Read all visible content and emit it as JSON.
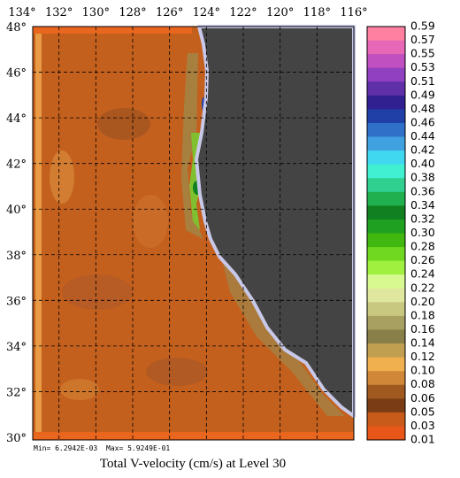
{
  "map": {
    "lon_labels": [
      "134°",
      "132°",
      "130°",
      "128°",
      "126°",
      "124°",
      "122°",
      "120°",
      "118°",
      "116°"
    ],
    "lat_labels": [
      "48°",
      "46°",
      "44°",
      "42°",
      "40°",
      "38°",
      "36°",
      "34°",
      "32°",
      "30°"
    ],
    "colorbar": {
      "labels": [
        "0.59",
        "0.57",
        "0.55",
        "0.53",
        "0.51",
        "0.49",
        "0.48",
        "0.46",
        "0.44",
        "0.42",
        "0.40",
        "0.38",
        "0.36",
        "0.34",
        "0.32",
        "0.30",
        "0.28",
        "0.26",
        "0.24",
        "0.22",
        "0.20",
        "0.18",
        "0.16",
        "0.14",
        "0.12",
        "0.10",
        "0.08",
        "0.06",
        "0.05",
        "0.03",
        "0.01"
      ],
      "colors": [
        "#ff80a0",
        "#e868b8",
        "#c050c0",
        "#9040c0",
        "#6030a8",
        "#302090",
        "#2040a8",
        "#3070c8",
        "#40a0e0",
        "#40d8f0",
        "#40f0d0",
        "#30d090",
        "#20b050",
        "#108020",
        "#20a020",
        "#40b810",
        "#70d820",
        "#a0f040",
        "#d8f890",
        "#e0e8a0",
        "#c8c880",
        "#a8a060",
        "#888048",
        "#c0a050",
        "#f0b050",
        "#d08838",
        "#a05a20",
        "#7a3c14",
        "#c85a1a",
        "#e8561a"
      ]
    },
    "min_text": "Min= 6.2942E-03",
    "max_text": "Max= 5.9249E-01",
    "title": "Total V-velocity (cm/s) at Level 30"
  }
}
